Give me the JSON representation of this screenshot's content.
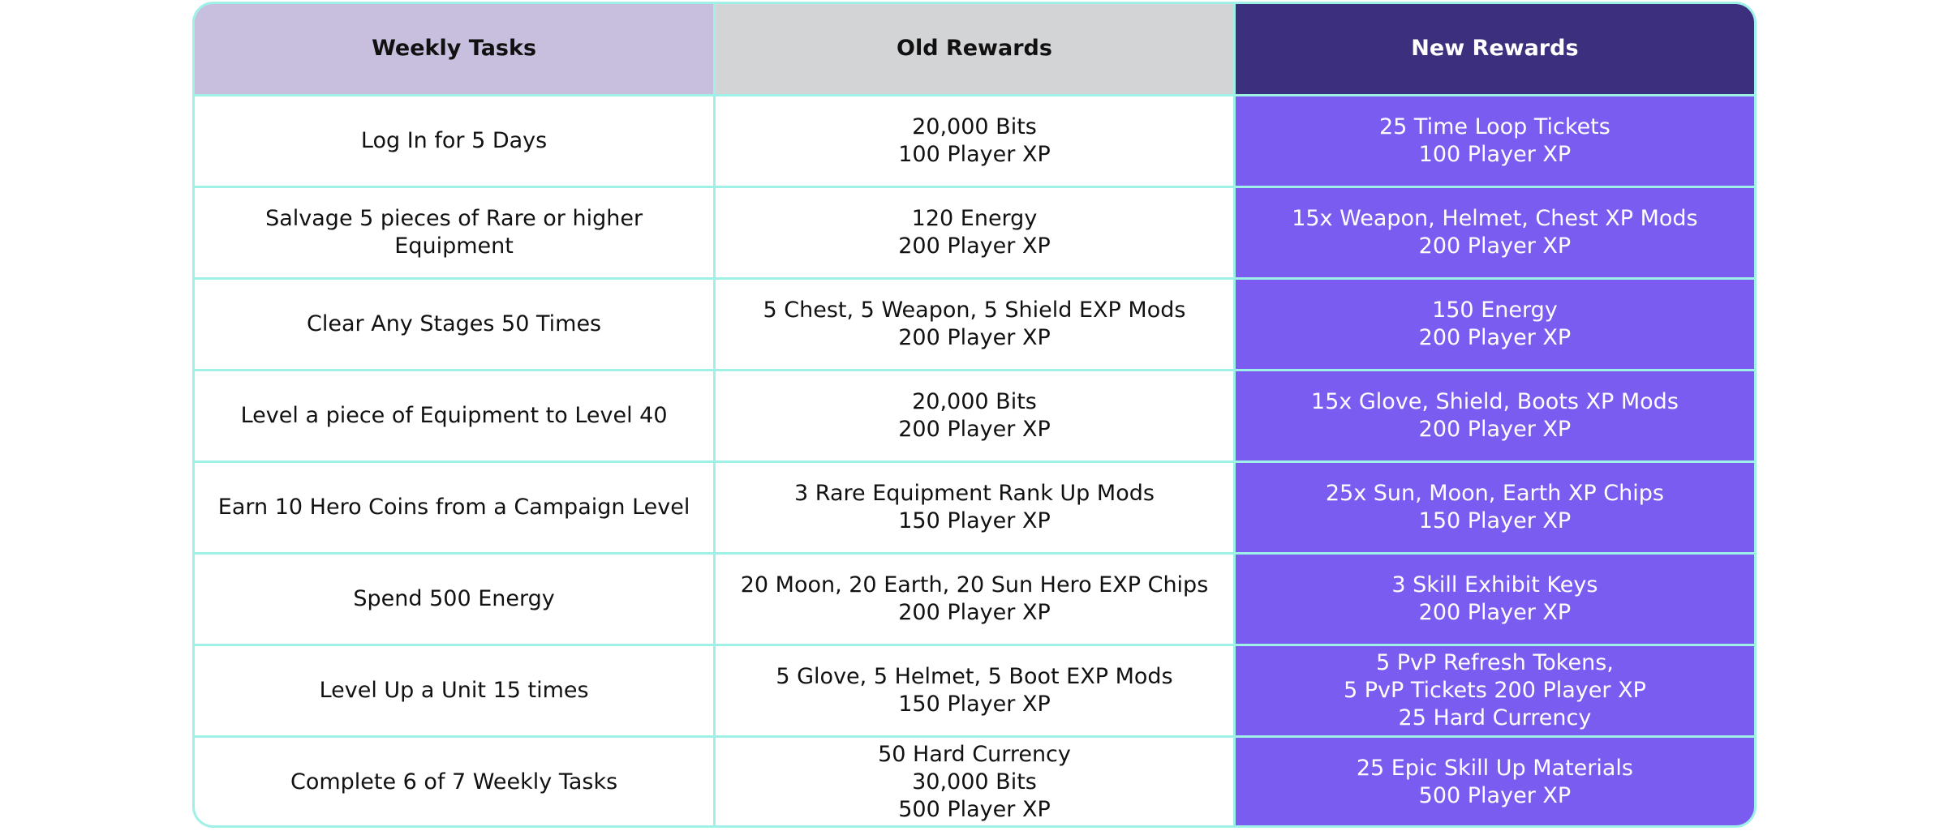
{
  "table": {
    "headers": {
      "tasks": "Weekly Tasks",
      "old": "Old Rewards",
      "new": "New Rewards"
    },
    "rows": [
      {
        "task": "Log In for 5 Days",
        "old": [
          "20,000 Bits",
          "100 Player XP"
        ],
        "new": [
          "25 Time Loop Tickets",
          "100 Player XP"
        ]
      },
      {
        "task": "Salvage 5 pieces of Rare or higher Equipment",
        "old": [
          "120 Energy",
          "200 Player XP"
        ],
        "new": [
          "15x Weapon, Helmet, Chest XP Mods",
          "200 Player XP"
        ]
      },
      {
        "task": "Clear Any Stages 50 Times",
        "old": [
          "5 Chest, 5 Weapon, 5 Shield EXP Mods",
          "200 Player XP"
        ],
        "new": [
          "150 Energy",
          "200 Player XP"
        ]
      },
      {
        "task": "Level a piece of Equipment to Level 40",
        "old": [
          "20,000 Bits",
          "200 Player XP"
        ],
        "new": [
          "15x Glove, Shield, Boots XP Mods",
          "200 Player XP"
        ]
      },
      {
        "task": "Earn 10 Hero Coins from a Campaign Level",
        "old": [
          "3 Rare Equipment Rank Up Mods",
          "150 Player XP"
        ],
        "new": [
          "25x Sun, Moon, Earth XP Chips",
          "150 Player XP"
        ]
      },
      {
        "task": "Spend 500 Energy",
        "old": [
          "20 Moon, 20 Earth, 20 Sun Hero EXP Chips",
          "200 Player XP"
        ],
        "new": [
          "3 Skill Exhibit Keys",
          "200 Player XP"
        ]
      },
      {
        "task": "Level Up a Unit 15 times",
        "old": [
          "5 Glove, 5 Helmet, 5 Boot EXP Mods",
          "150 Player XP"
        ],
        "new": [
          "5 PvP Refresh Tokens,",
          "5 PvP Tickets 200 Player XP",
          "25 Hard Currency"
        ]
      },
      {
        "task": "Complete 6 of 7 Weekly Tasks",
        "old": [
          "50 Hard Currency",
          "30,000 Bits",
          "500 Player XP"
        ],
        "new": [
          "25 Epic Skill Up Materials",
          "500 Player XP"
        ]
      }
    ]
  },
  "colors": {
    "border": "#9ff0e6",
    "header_tasks_bg": "#c8bfdf",
    "header_old_bg": "#d3d4d6",
    "header_new_bg": "#3b2f7e",
    "new_col_bg": "#7b5cf0"
  }
}
